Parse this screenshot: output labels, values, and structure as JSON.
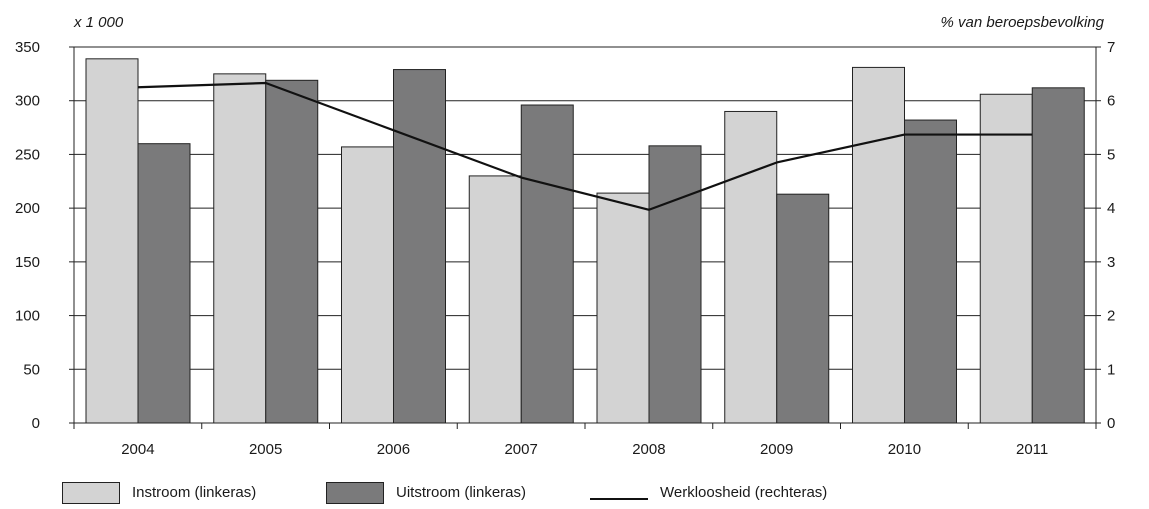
{
  "chart_data": {
    "type": "bar",
    "left_axis_unit": "x 1 000",
    "right_axis_unit": "% van beroepsbevolking",
    "categories": [
      "2004",
      "2005",
      "2006",
      "2007",
      "2008",
      "2009",
      "2010",
      "2011"
    ],
    "series": [
      {
        "name": "Instroom (linkeras)",
        "type": "bar",
        "axis": "left",
        "color": "#d3d3d3",
        "values": [
          339,
          325,
          257,
          230,
          214,
          290,
          331,
          306
        ]
      },
      {
        "name": "Uitstroom (linkeras)",
        "type": "bar",
        "axis": "left",
        "color": "#7a7a7b",
        "values": [
          260,
          319,
          329,
          296,
          258,
          213,
          282,
          312
        ]
      },
      {
        "name": "Werkloosheid (rechteras)",
        "type": "line",
        "axis": "right",
        "color": "#111111",
        "values": [
          6.25,
          6.33,
          null,
          4.57,
          3.97,
          4.85,
          5.37,
          5.37
        ]
      }
    ],
    "ylim_left": [
      0,
      350
    ],
    "yticks_left": [
      "0",
      "50",
      "100",
      "150",
      "200",
      "250",
      "300",
      "350"
    ],
    "ylim_right": [
      0,
      7
    ],
    "yticks_right": [
      "0",
      "1",
      "2",
      "3",
      "4",
      "5",
      "6",
      "7"
    ],
    "grid": true,
    "legend": "bottom"
  }
}
